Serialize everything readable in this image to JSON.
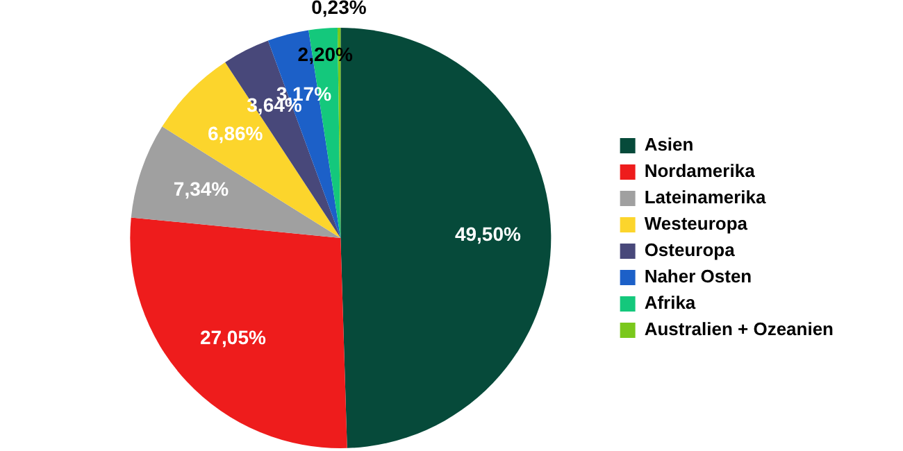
{
  "chart_data": {
    "type": "pie",
    "categories": [
      "Asien",
      "Nordamerika",
      "Lateinamerika",
      "Westeuropa",
      "Osteuropa",
      "Naher Osten",
      "Afrika",
      "Australien + Ozeanien"
    ],
    "values": [
      49.5,
      27.05,
      7.34,
      6.86,
      3.64,
      3.17,
      2.2,
      0.23
    ],
    "colors": [
      "#064a3a",
      "#ee1c1c",
      "#a0a0a0",
      "#fcd52c",
      "#48487a",
      "#1c60c8",
      "#14c87c",
      "#7ac81c"
    ],
    "value_labels": [
      "49,50%",
      "27,05%",
      "7,34%",
      "6,86%",
      "3,64%",
      "3,17%",
      "2,20%",
      "0,23%"
    ],
    "legend": "right"
  }
}
